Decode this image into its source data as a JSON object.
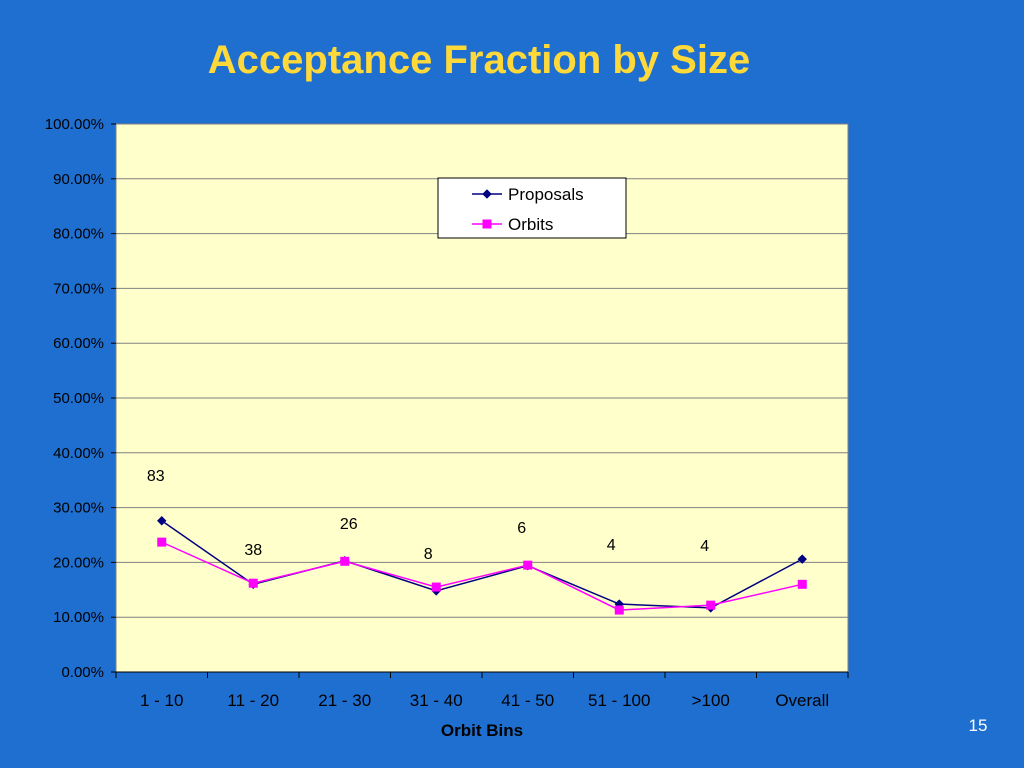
{
  "slide": {
    "title": "Acceptance Fraction by Size",
    "page_number": "15",
    "background_color": "#1e6fd0",
    "title_color": "#ffd83a"
  },
  "chart_data": {
    "type": "line",
    "categories": [
      "1 - 10",
      "11 - 20",
      "21 - 30",
      "31 - 40",
      "41 - 50",
      "51 - 100",
      ">100",
      "Overall"
    ],
    "series": [
      {
        "name": "Proposals",
        "values": [
          27.6,
          16.0,
          20.3,
          14.8,
          19.4,
          12.4,
          11.7,
          20.6
        ],
        "color": "#000080",
        "marker": "diamond"
      },
      {
        "name": "Orbits",
        "values": [
          23.7,
          16.2,
          20.2,
          15.5,
          19.5,
          11.3,
          12.2,
          16.0
        ],
        "color": "#ff00ff",
        "marker": "square"
      }
    ],
    "data_labels": [
      "83",
      "38",
      "26",
      "8",
      "6",
      "4",
      "4",
      ""
    ],
    "xlabel": "Orbit Bins",
    "ylabel": "",
    "ylim": [
      0,
      100
    ],
    "yticks": [
      "0.00%",
      "10.00%",
      "20.00%",
      "30.00%",
      "40.00%",
      "50.00%",
      "60.00%",
      "70.00%",
      "80.00%",
      "90.00%",
      "100.00%"
    ],
    "grid": true,
    "legend_position": "top-center",
    "plot_background": "#ffffcc"
  }
}
